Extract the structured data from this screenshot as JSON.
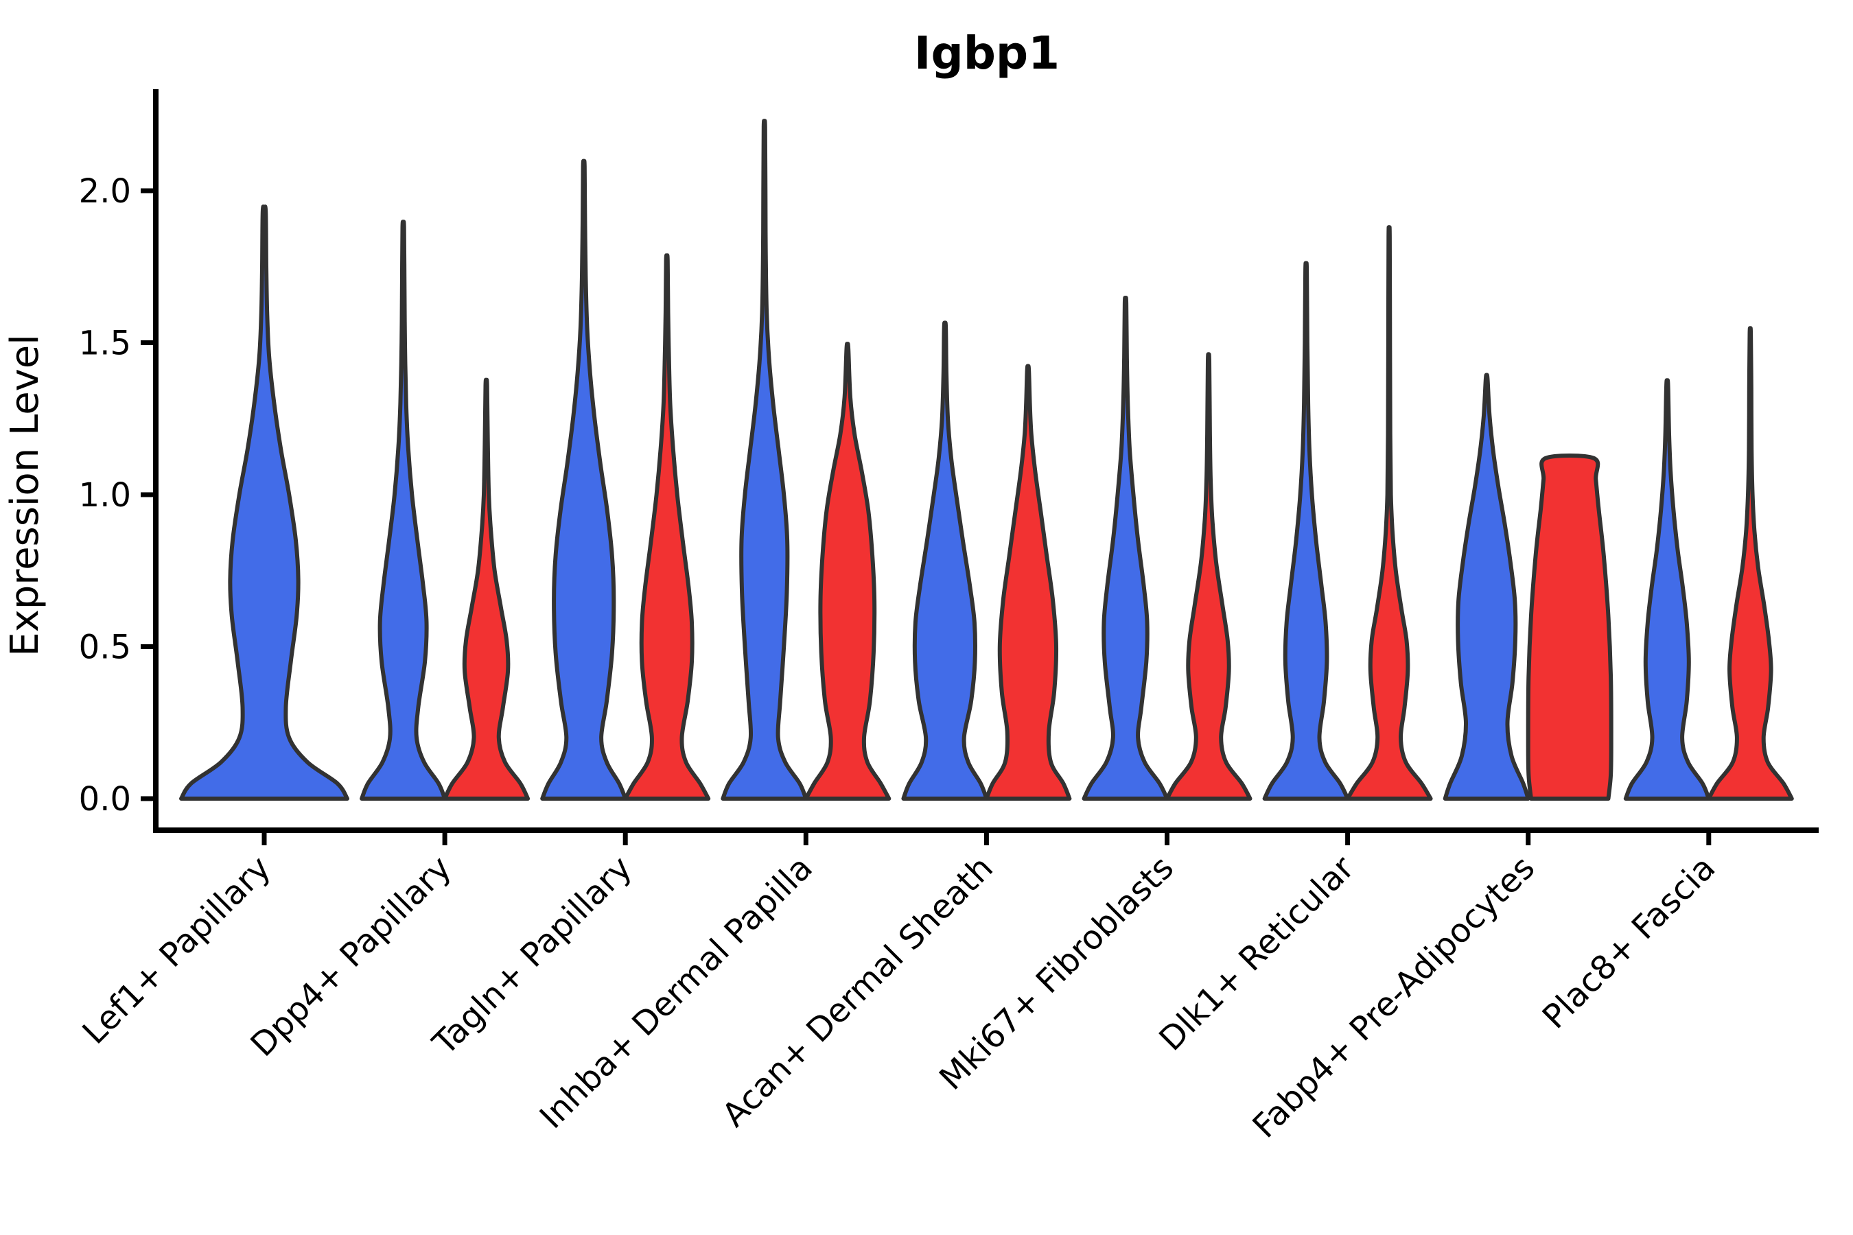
{
  "chart": {
    "title": "Igbp1",
    "ylabel": "Expression Level"
  },
  "chart_data": {
    "type": "violin",
    "title": "Igbp1",
    "xlabel": "",
    "ylabel": "Expression Level",
    "ylim": [
      0,
      2.3
    ],
    "grid": false,
    "legend_position": "none",
    "yticks": [
      "0.0",
      "0.5",
      "1.0",
      "1.5",
      "2.0"
    ],
    "ytick_values": [
      0,
      0.5,
      1.0,
      1.5,
      2.0
    ],
    "categories": [
      "Lef1+ Papillary",
      "Dpp4+ Papillary",
      "Tagln+ Papillary",
      "Inhba+ Dermal Papilla",
      "Acan+ Dermal Sheath",
      "Mki67+ Fibroblasts",
      "Dlk1+ Reticular",
      "Fabp4+ Pre-Adipocytes",
      "Plac8+ Fascia"
    ],
    "colors": {
      "blue": "#426CE8",
      "red": "#F23232",
      "outline": "#323232",
      "axis": "#000000"
    },
    "violins": [
      {
        "category_index": 0,
        "split": "blue",
        "side": "full",
        "max": 1.93,
        "profile": [
          [
            0,
            1.0
          ],
          [
            0.05,
            0.88
          ],
          [
            0.12,
            0.52
          ],
          [
            0.2,
            0.3
          ],
          [
            0.3,
            0.26
          ],
          [
            0.45,
            0.32
          ],
          [
            0.6,
            0.39
          ],
          [
            0.72,
            0.41
          ],
          [
            0.85,
            0.38
          ],
          [
            1.0,
            0.3
          ],
          [
            1.15,
            0.2
          ],
          [
            1.3,
            0.12
          ],
          [
            1.45,
            0.06
          ],
          [
            1.6,
            0.035
          ],
          [
            1.75,
            0.025
          ],
          [
            1.93,
            0.018
          ]
        ]
      },
      {
        "category_index": 1,
        "split": "blue",
        "side": "left",
        "max": 1.88,
        "profile": [
          [
            0,
            1.0
          ],
          [
            0.05,
            0.85
          ],
          [
            0.12,
            0.5
          ],
          [
            0.2,
            0.32
          ],
          [
            0.3,
            0.36
          ],
          [
            0.45,
            0.52
          ],
          [
            0.58,
            0.56
          ],
          [
            0.7,
            0.48
          ],
          [
            0.85,
            0.34
          ],
          [
            1.0,
            0.21
          ],
          [
            1.15,
            0.12
          ],
          [
            1.3,
            0.07
          ],
          [
            1.5,
            0.04
          ],
          [
            1.7,
            0.028
          ],
          [
            1.88,
            0.018
          ]
        ]
      },
      {
        "category_index": 1,
        "split": "red",
        "side": "right",
        "max": 1.36,
        "profile": [
          [
            0,
            1.0
          ],
          [
            0.05,
            0.82
          ],
          [
            0.12,
            0.45
          ],
          [
            0.2,
            0.3
          ],
          [
            0.3,
            0.4
          ],
          [
            0.42,
            0.52
          ],
          [
            0.52,
            0.49
          ],
          [
            0.63,
            0.35
          ],
          [
            0.75,
            0.2
          ],
          [
            0.88,
            0.11
          ],
          [
            1.0,
            0.06
          ],
          [
            1.18,
            0.035
          ],
          [
            1.36,
            0.018
          ]
        ]
      },
      {
        "category_index": 2,
        "split": "blue",
        "side": "left",
        "max": 2.08,
        "profile": [
          [
            0,
            1.0
          ],
          [
            0.05,
            0.85
          ],
          [
            0.12,
            0.55
          ],
          [
            0.2,
            0.42
          ],
          [
            0.32,
            0.55
          ],
          [
            0.48,
            0.68
          ],
          [
            0.65,
            0.72
          ],
          [
            0.8,
            0.68
          ],
          [
            0.95,
            0.56
          ],
          [
            1.1,
            0.4
          ],
          [
            1.25,
            0.26
          ],
          [
            1.4,
            0.15
          ],
          [
            1.55,
            0.08
          ],
          [
            1.72,
            0.045
          ],
          [
            1.9,
            0.028
          ],
          [
            2.08,
            0.018
          ]
        ]
      },
      {
        "category_index": 2,
        "split": "red",
        "side": "right",
        "max": 1.77,
        "profile": [
          [
            0,
            1.0
          ],
          [
            0.05,
            0.8
          ],
          [
            0.12,
            0.46
          ],
          [
            0.2,
            0.36
          ],
          [
            0.32,
            0.5
          ],
          [
            0.45,
            0.6
          ],
          [
            0.58,
            0.6
          ],
          [
            0.7,
            0.52
          ],
          [
            0.85,
            0.38
          ],
          [
            1.0,
            0.25
          ],
          [
            1.15,
            0.15
          ],
          [
            1.3,
            0.08
          ],
          [
            1.45,
            0.05
          ],
          [
            1.6,
            0.03
          ],
          [
            1.77,
            0.018
          ]
        ]
      },
      {
        "category_index": 3,
        "split": "blue",
        "side": "left",
        "max": 2.21,
        "profile": [
          [
            0,
            1.0
          ],
          [
            0.05,
            0.85
          ],
          [
            0.12,
            0.5
          ],
          [
            0.2,
            0.33
          ],
          [
            0.32,
            0.38
          ],
          [
            0.5,
            0.47
          ],
          [
            0.68,
            0.54
          ],
          [
            0.85,
            0.55
          ],
          [
            1.0,
            0.47
          ],
          [
            1.15,
            0.34
          ],
          [
            1.3,
            0.21
          ],
          [
            1.45,
            0.11
          ],
          [
            1.6,
            0.055
          ],
          [
            1.8,
            0.032
          ],
          [
            2.0,
            0.024
          ],
          [
            2.21,
            0.016
          ]
        ]
      },
      {
        "category_index": 3,
        "split": "red",
        "side": "right",
        "max": 1.48,
        "profile": [
          [
            0,
            1.0
          ],
          [
            0.05,
            0.8
          ],
          [
            0.12,
            0.48
          ],
          [
            0.2,
            0.4
          ],
          [
            0.32,
            0.54
          ],
          [
            0.48,
            0.63
          ],
          [
            0.65,
            0.65
          ],
          [
            0.8,
            0.6
          ],
          [
            0.95,
            0.5
          ],
          [
            1.08,
            0.34
          ],
          [
            1.2,
            0.17
          ],
          [
            1.32,
            0.07
          ],
          [
            1.48,
            0.022
          ]
        ]
      },
      {
        "category_index": 4,
        "split": "blue",
        "side": "left",
        "max": 1.55,
        "profile": [
          [
            0,
            1.0
          ],
          [
            0.05,
            0.86
          ],
          [
            0.12,
            0.56
          ],
          [
            0.2,
            0.46
          ],
          [
            0.32,
            0.63
          ],
          [
            0.45,
            0.72
          ],
          [
            0.58,
            0.71
          ],
          [
            0.7,
            0.6
          ],
          [
            0.85,
            0.43
          ],
          [
            1.0,
            0.27
          ],
          [
            1.12,
            0.15
          ],
          [
            1.25,
            0.07
          ],
          [
            1.4,
            0.035
          ],
          [
            1.55,
            0.02
          ]
        ]
      },
      {
        "category_index": 4,
        "split": "red",
        "side": "right",
        "max": 1.41,
        "profile": [
          [
            0,
            1.0
          ],
          [
            0.05,
            0.85
          ],
          [
            0.12,
            0.55
          ],
          [
            0.22,
            0.5
          ],
          [
            0.35,
            0.63
          ],
          [
            0.5,
            0.68
          ],
          [
            0.65,
            0.6
          ],
          [
            0.8,
            0.45
          ],
          [
            0.95,
            0.3
          ],
          [
            1.08,
            0.17
          ],
          [
            1.2,
            0.08
          ],
          [
            1.3,
            0.045
          ],
          [
            1.41,
            0.02
          ]
        ]
      },
      {
        "category_index": 5,
        "split": "blue",
        "side": "left",
        "max": 1.63,
        "profile": [
          [
            0,
            1.0
          ],
          [
            0.05,
            0.82
          ],
          [
            0.12,
            0.46
          ],
          [
            0.2,
            0.3
          ],
          [
            0.3,
            0.38
          ],
          [
            0.45,
            0.5
          ],
          [
            0.58,
            0.52
          ],
          [
            0.7,
            0.44
          ],
          [
            0.85,
            0.3
          ],
          [
            1.0,
            0.19
          ],
          [
            1.15,
            0.1
          ],
          [
            1.3,
            0.055
          ],
          [
            1.45,
            0.032
          ],
          [
            1.63,
            0.018
          ]
        ]
      },
      {
        "category_index": 5,
        "split": "red",
        "side": "right",
        "max": 1.44,
        "profile": [
          [
            0,
            1.0
          ],
          [
            0.05,
            0.8
          ],
          [
            0.12,
            0.42
          ],
          [
            0.2,
            0.3
          ],
          [
            0.3,
            0.41
          ],
          [
            0.42,
            0.49
          ],
          [
            0.52,
            0.46
          ],
          [
            0.64,
            0.33
          ],
          [
            0.78,
            0.18
          ],
          [
            0.92,
            0.09
          ],
          [
            1.05,
            0.05
          ],
          [
            1.2,
            0.032
          ],
          [
            1.44,
            0.016
          ]
        ]
      },
      {
        "category_index": 6,
        "split": "blue",
        "side": "left",
        "max": 1.74,
        "profile": [
          [
            0,
            1.0
          ],
          [
            0.05,
            0.82
          ],
          [
            0.12,
            0.46
          ],
          [
            0.2,
            0.32
          ],
          [
            0.32,
            0.43
          ],
          [
            0.45,
            0.5
          ],
          [
            0.58,
            0.47
          ],
          [
            0.7,
            0.37
          ],
          [
            0.85,
            0.24
          ],
          [
            1.0,
            0.14
          ],
          [
            1.15,
            0.08
          ],
          [
            1.3,
            0.05
          ],
          [
            1.5,
            0.03
          ],
          [
            1.74,
            0.016
          ]
        ]
      },
      {
        "category_index": 6,
        "split": "red",
        "side": "right",
        "max": 1.85,
        "profile": [
          [
            0,
            1.0
          ],
          [
            0.05,
            0.78
          ],
          [
            0.12,
            0.4
          ],
          [
            0.2,
            0.28
          ],
          [
            0.3,
            0.37
          ],
          [
            0.42,
            0.45
          ],
          [
            0.52,
            0.42
          ],
          [
            0.62,
            0.3
          ],
          [
            0.75,
            0.16
          ],
          [
            0.88,
            0.08
          ],
          [
            1.0,
            0.042
          ],
          [
            1.2,
            0.026
          ],
          [
            1.5,
            0.02
          ],
          [
            1.85,
            0.013
          ]
        ]
      },
      {
        "category_index": 7,
        "split": "blue",
        "side": "left",
        "max": 1.38,
        "profile": [
          [
            0,
            1.0
          ],
          [
            0.05,
            0.88
          ],
          [
            0.14,
            0.6
          ],
          [
            0.25,
            0.5
          ],
          [
            0.38,
            0.62
          ],
          [
            0.52,
            0.69
          ],
          [
            0.65,
            0.68
          ],
          [
            0.78,
            0.57
          ],
          [
            0.9,
            0.44
          ],
          [
            1.02,
            0.29
          ],
          [
            1.14,
            0.16
          ],
          [
            1.26,
            0.07
          ],
          [
            1.38,
            0.022
          ]
        ]
      },
      {
        "category_index": 7,
        "split": "red",
        "side": "right",
        "max": 1.12,
        "truncated": true,
        "profile": [
          [
            0,
            0.93
          ],
          [
            0.08,
            0.99
          ],
          [
            0.2,
            1.0
          ],
          [
            0.4,
            0.99
          ],
          [
            0.6,
            0.93
          ],
          [
            0.8,
            0.82
          ],
          [
            0.95,
            0.7
          ],
          [
            1.05,
            0.63
          ],
          [
            1.12,
            0.58
          ]
        ]
      },
      {
        "category_index": 8,
        "split": "blue",
        "side": "left",
        "max": 1.36,
        "profile": [
          [
            0,
            1.0
          ],
          [
            0.05,
            0.85
          ],
          [
            0.12,
            0.5
          ],
          [
            0.2,
            0.36
          ],
          [
            0.32,
            0.47
          ],
          [
            0.45,
            0.52
          ],
          [
            0.58,
            0.47
          ],
          [
            0.7,
            0.37
          ],
          [
            0.82,
            0.25
          ],
          [
            0.95,
            0.15
          ],
          [
            1.08,
            0.08
          ],
          [
            1.2,
            0.045
          ],
          [
            1.36,
            0.02
          ]
        ]
      },
      {
        "category_index": 8,
        "split": "red",
        "side": "right",
        "max": 1.53,
        "profile": [
          [
            0,
            1.0
          ],
          [
            0.05,
            0.8
          ],
          [
            0.12,
            0.42
          ],
          [
            0.2,
            0.32
          ],
          [
            0.3,
            0.43
          ],
          [
            0.42,
            0.5
          ],
          [
            0.52,
            0.45
          ],
          [
            0.64,
            0.33
          ],
          [
            0.76,
            0.19
          ],
          [
            0.88,
            0.1
          ],
          [
            1.0,
            0.055
          ],
          [
            1.15,
            0.032
          ],
          [
            1.35,
            0.024
          ],
          [
            1.53,
            0.013
          ]
        ]
      }
    ]
  }
}
